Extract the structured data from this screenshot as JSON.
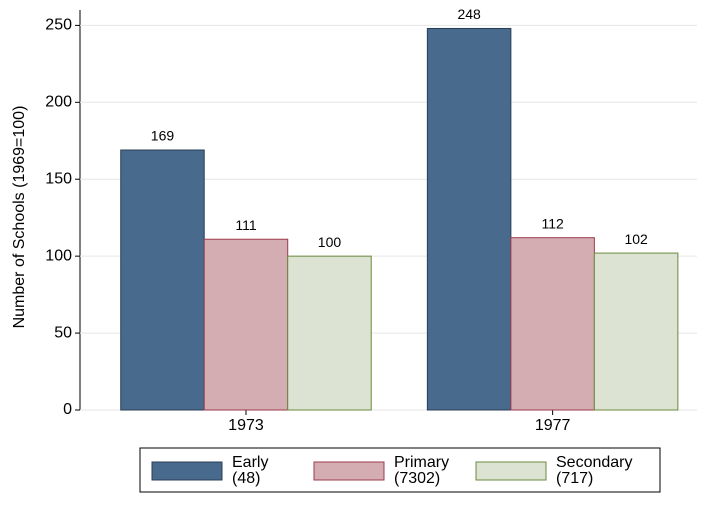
{
  "chart_data": {
    "type": "bar",
    "y_label": "Number of Schools (1969=100)",
    "categories": [
      "1973",
      "1977"
    ],
    "series": [
      {
        "name": "Early (48)",
        "color": "#476a8d",
        "values": [
          169,
          248
        ]
      },
      {
        "name": "Primary (7302)",
        "color": "#d4adb2",
        "values": [
          111,
          112
        ]
      },
      {
        "name": "Secondary (717)",
        "color": "#dde3d2",
        "values": [
          100,
          102
        ]
      }
    ],
    "edge_colors": [
      "#2a3f57",
      "#9c3b4b",
      "#6a8a3c"
    ],
    "ylim": [
      0,
      260
    ],
    "yticks": [
      0,
      50,
      100,
      150,
      200,
      250
    ],
    "grid": true
  }
}
